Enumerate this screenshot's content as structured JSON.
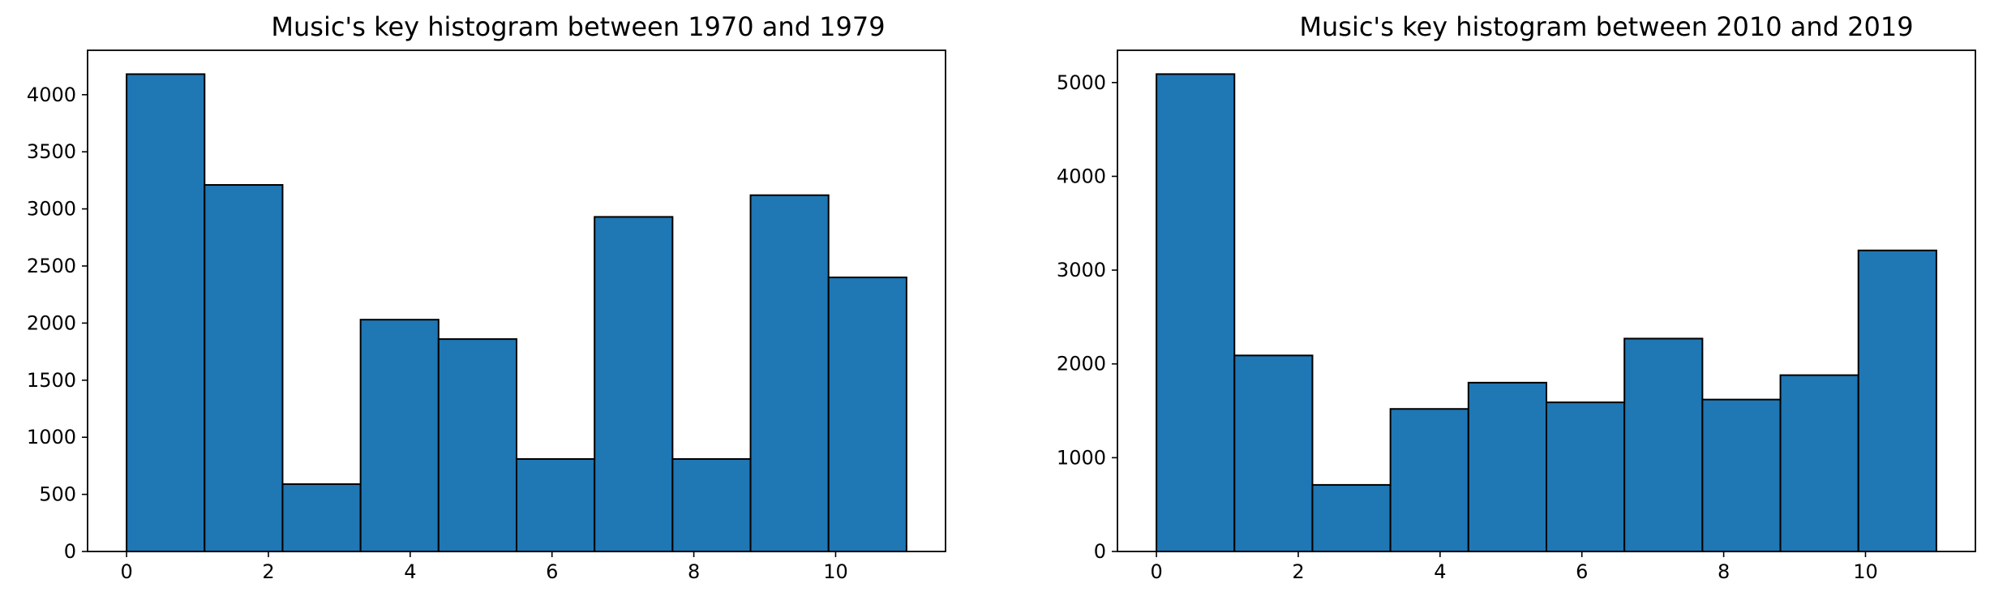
{
  "chart_data": [
    {
      "type": "bar",
      "title": "Music's key histogram between 1970 and 1979",
      "xlabel": "",
      "ylabel": "",
      "bin_edges": [
        0,
        1.1,
        2.2,
        3.3,
        4.4,
        5.5,
        6.6,
        7.7,
        8.8,
        9.9,
        11
      ],
      "values": [
        4180,
        3210,
        590,
        2030,
        1860,
        810,
        2930,
        810,
        3120,
        2400
      ],
      "xlim": [
        -0.55,
        11.55
      ],
      "ylim": [
        0,
        4389
      ],
      "xticks": [
        0,
        2,
        4,
        6,
        8,
        10
      ],
      "xtick_labels": [
        "0",
        "2",
        "4",
        "6",
        "8",
        "10"
      ],
      "yticks": [
        0,
        500,
        1000,
        1500,
        2000,
        2500,
        3000,
        3500,
        4000
      ],
      "ytick_labels": [
        "0",
        "500",
        "1000",
        "1500",
        "2000",
        "2500",
        "3000",
        "3500",
        "4000"
      ],
      "grid": false,
      "bar_color": "#1f77b4",
      "edge_color": "#000000"
    },
    {
      "type": "bar",
      "title": "Music's key histogram between 2010 and 2019",
      "xlabel": "",
      "ylabel": "",
      "bin_edges": [
        0,
        1.1,
        2.2,
        3.3,
        4.4,
        5.5,
        6.6,
        7.7,
        8.8,
        9.9,
        11
      ],
      "values": [
        5090,
        2090,
        710,
        1520,
        1800,
        1590,
        2270,
        1620,
        1880,
        3210
      ],
      "xlim": [
        -0.55,
        11.55
      ],
      "ylim": [
        0,
        5344
      ],
      "xticks": [
        0,
        2,
        4,
        6,
        8,
        10
      ],
      "xtick_labels": [
        "0",
        "2",
        "4",
        "6",
        "8",
        "10"
      ],
      "yticks": [
        0,
        1000,
        2000,
        3000,
        4000,
        5000
      ],
      "ytick_labels": [
        "0",
        "1000",
        "2000",
        "3000",
        "4000",
        "5000"
      ],
      "grid": false,
      "bar_color": "#1f77b4",
      "edge_color": "#000000"
    }
  ]
}
